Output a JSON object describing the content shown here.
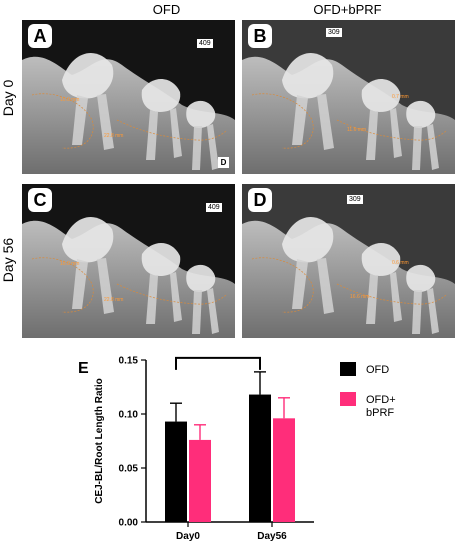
{
  "figure": {
    "column_headers": [
      "OFD",
      "OFD+bPRF"
    ],
    "row_labels": [
      "Day 0",
      "Day 56"
    ],
    "panels": [
      {
        "letter": "A",
        "specimen": "409",
        "measurements": [
          "10.0 mm",
          "22.8 mm"
        ]
      },
      {
        "letter": "B",
        "specimen": "309",
        "measurements": [
          "0.7 mm",
          "11.6 mm"
        ]
      },
      {
        "letter": "C",
        "specimen": "409",
        "measurements": [
          "10.0 mm",
          "22.8 mm"
        ]
      },
      {
        "letter": "D",
        "specimen": "309",
        "measurements": [
          "0.6 mm",
          "16.6 mm"
        ]
      }
    ],
    "chart_letter": "E",
    "corner_mark": "D"
  },
  "chart_data": {
    "type": "bar",
    "categories": [
      "Day0",
      "Day56"
    ],
    "series": [
      {
        "name": "OFD",
        "color": "#000000",
        "values": [
          0.093,
          0.118
        ],
        "errors": [
          0.017,
          0.021
        ]
      },
      {
        "name": "OFD+\nbPRF",
        "color": "#ff2d7a",
        "values": [
          0.076,
          0.096
        ],
        "errors": [
          0.014,
          0.019
        ]
      }
    ],
    "ylabel": "CEJ-BL/Root Length Ratio",
    "xlabel": "",
    "ylim": [
      0,
      0.15
    ],
    "yticks": [
      "0.00",
      "0.05",
      "0.10",
      "0.15"
    ],
    "legend": [
      "OFD",
      "OFD+",
      "bPRF"
    ],
    "legend_position": "right",
    "significance_bracket": {
      "from": "Day0",
      "to": "Day56",
      "series": "OFD"
    }
  }
}
